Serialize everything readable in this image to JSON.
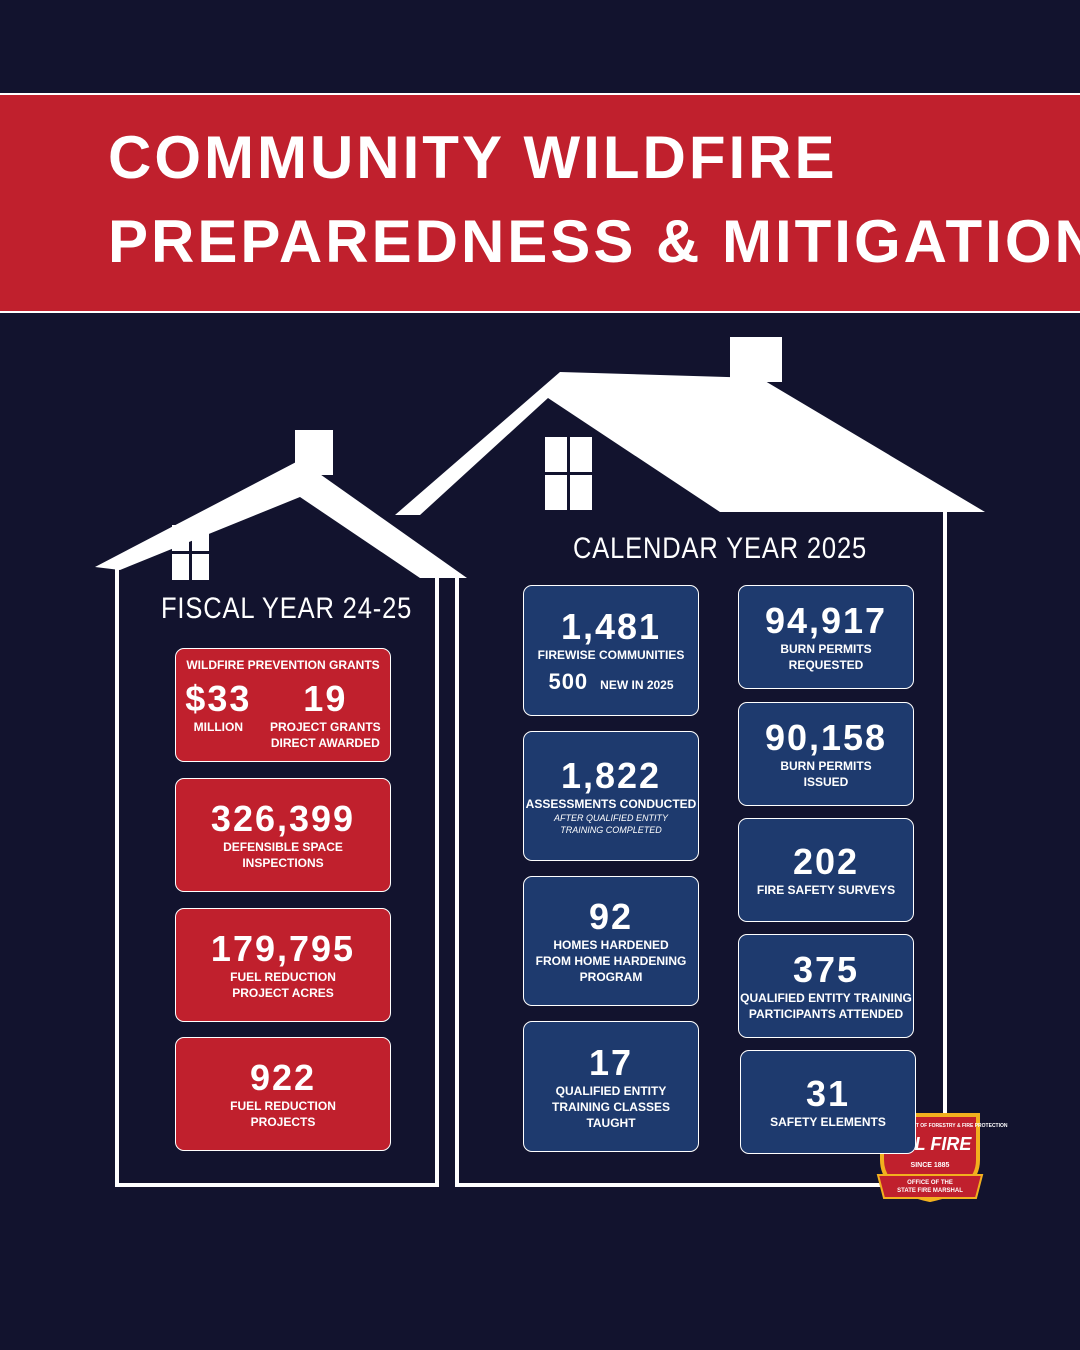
{
  "header": {
    "title_lines": [
      "COMMUNITY WILDFIRE",
      "PREPAREDNESS & MITIGATION"
    ]
  },
  "fiscal": {
    "heading": "FISCAL YEAR 24-25",
    "grants": {
      "heading": "WILDFIRE PREVENTION GRANTS",
      "items": [
        {
          "value": "$33",
          "label_lines": [
            "MILLION"
          ]
        },
        {
          "value": "19",
          "label_lines": [
            "PROJECT GRANTS",
            "DIRECT AWARDED"
          ]
        }
      ]
    },
    "cards": [
      {
        "value": "326,399",
        "label_lines": [
          "DEFENSIBLE SPACE",
          "INSPECTIONS"
        ]
      },
      {
        "value": "179,795",
        "label_lines": [
          "FUEL REDUCTION",
          "PROJECT ACRES"
        ]
      },
      {
        "value": "922",
        "label_lines": [
          "FUEL REDUCTION",
          "PROJECTS"
        ]
      }
    ]
  },
  "calendar": {
    "heading": "CALENDAR YEAR 2025",
    "left_cards": [
      {
        "value": "1,481",
        "label_lines": [
          "FIREWISE COMMUNITIES"
        ],
        "extra": {
          "value": "500",
          "label": "NEW IN 2025"
        }
      },
      {
        "value": "1,822",
        "label_lines": [
          "ASSESSMENTS CONDUCTED"
        ],
        "note_lines": [
          "AFTER QUALIFIED ENTITY",
          "TRAINING COMPLETED"
        ]
      },
      {
        "value": "92",
        "label_lines": [
          "HOMES HARDENED",
          "FROM HOME HARDENING",
          "PROGRAM"
        ]
      },
      {
        "value": "17",
        "label_lines": [
          "QUALIFIED ENTITY",
          "TRAINING CLASSES",
          "TAUGHT"
        ]
      }
    ],
    "right_cards": [
      {
        "value": "94,917",
        "label_lines": [
          "BURN PERMITS",
          "REQUESTED"
        ]
      },
      {
        "value": "90,158",
        "label_lines": [
          "BURN PERMITS",
          "ISSUED"
        ]
      },
      {
        "value": "202",
        "label_lines": [
          "FIRE SAFETY SURVEYS"
        ]
      },
      {
        "value": "375",
        "label_lines": [
          "QUALIFIED ENTITY TRAINING",
          "PARTICIPANTS ATTENDED"
        ]
      },
      {
        "value": "31",
        "label_lines": [
          "SAFETY ELEMENTS"
        ]
      }
    ]
  },
  "logo": {
    "top_text": "CALIFORNIA DEPARTMENT OF FORESTRY & FIRE PROTECTION",
    "name": "CAL FIRE",
    "since": "SINCE 1885",
    "banner_lines": [
      "OFFICE OF THE",
      "STATE FIRE MARSHAL"
    ]
  }
}
